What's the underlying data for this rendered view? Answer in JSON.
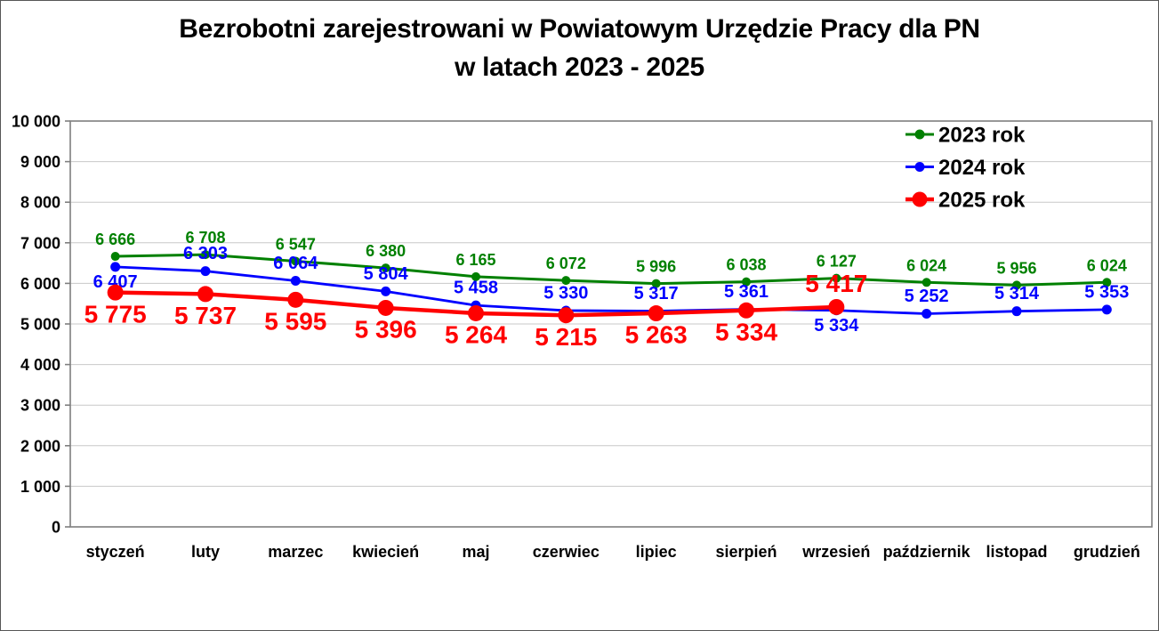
{
  "title": {
    "line1": "Bezrobotni zarejestrowani w Powiatowym Urzędzie Pracy dla PN",
    "line2": "w latach 2023 - 2025"
  },
  "chart_data": {
    "type": "line",
    "title": "Bezrobotni zarejestrowani w Powiatowym Urzędzie Pracy dla PN w latach 2023 - 2025",
    "xlabel": "",
    "ylabel": "",
    "grid": true,
    "legend_position": "top-right-inside",
    "categories": [
      "styczeń",
      "luty",
      "marzec",
      "kwiecień",
      "maj",
      "czerwiec",
      "lipiec",
      "sierpień",
      "wrzesień",
      "październik",
      "listopad",
      "grudzień"
    ],
    "y_axis": {
      "min": 0,
      "max": 10000,
      "step": 1000,
      "tick_labels": [
        "0",
        "1 000",
        "2 000",
        "3 000",
        "4 000",
        "5 000",
        "6 000",
        "7 000",
        "8 000",
        "9 000",
        "10 000"
      ]
    },
    "series": [
      {
        "name": "2023 rok",
        "color": "#008000",
        "values": [
          6666,
          6708,
          6547,
          6380,
          6165,
          6072,
          5996,
          6038,
          6127,
          6024,
          5956,
          6024
        ],
        "labels": [
          "6 666",
          "6 708",
          "6 547",
          "6 380",
          "6 165",
          "6 072",
          "5 996",
          "6 038",
          "6 127",
          "6 024",
          "5 956",
          "6 024"
        ],
        "label_position": "above",
        "label_overrides": {},
        "label_font_size": 18,
        "marker_radius": 5,
        "line_width": 3
      },
      {
        "name": "2024 rok",
        "color": "#0000FF",
        "values": [
          6407,
          6303,
          6064,
          5804,
          5458,
          5330,
          5317,
          5361,
          5334,
          5252,
          5314,
          5353
        ],
        "labels": [
          "6 407",
          "6 303",
          "6 064",
          "5 804",
          "5 458",
          "5 330",
          "5 317",
          "5 361",
          "5 334",
          "5 252",
          "5 314",
          "5 353"
        ],
        "label_position": "above",
        "label_overrides": {
          "0": "below",
          "8": "below"
        },
        "label_font_size": 20,
        "marker_radius": 5.5,
        "line_width": 2.8
      },
      {
        "name": "2025 rok",
        "color": "#FF0000",
        "values": [
          5775,
          5737,
          5595,
          5396,
          5264,
          5215,
          5263,
          5334,
          5417,
          null,
          null,
          null
        ],
        "labels": [
          "5 775",
          "5 737",
          "5 595",
          "5 396",
          "5 264",
          "5 215",
          "5 263",
          "5 334",
          "5 417",
          "",
          "",
          ""
        ],
        "label_position": "below",
        "label_overrides": {
          "8": "above"
        },
        "label_font_size": 28,
        "marker_radius": 9,
        "line_width": 4.5
      }
    ]
  },
  "colors": {
    "gridline": "#C8C8C8",
    "axis": "#7F7F7F",
    "text": "#000000",
    "background": "#FFFFFF"
  }
}
